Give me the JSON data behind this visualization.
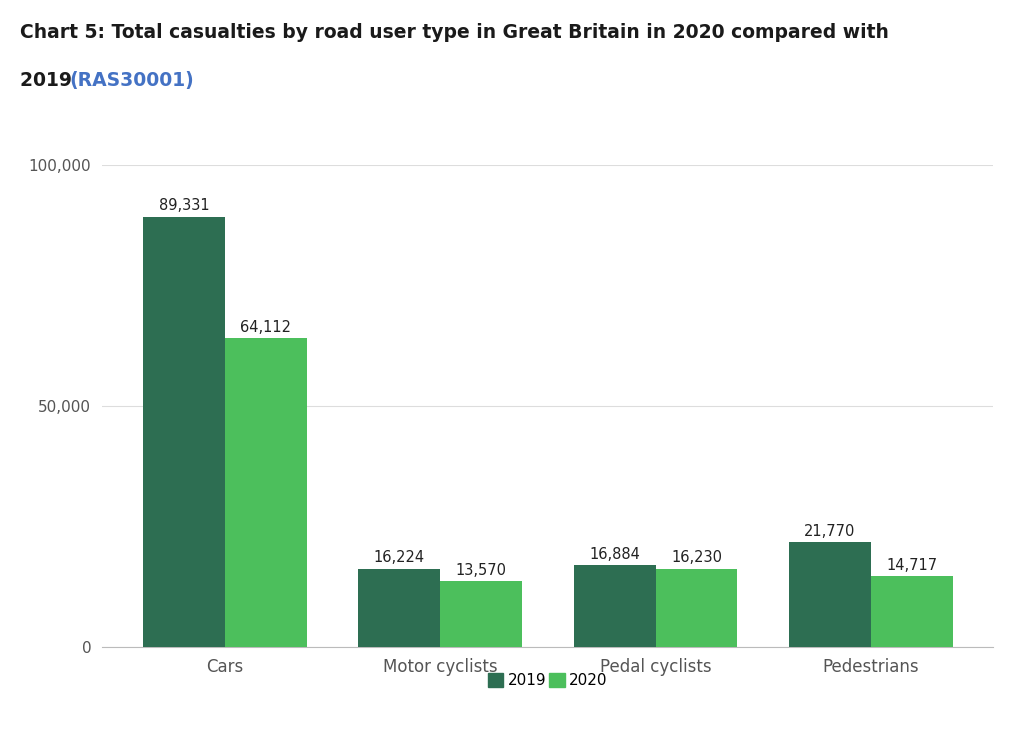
{
  "title_line1": "Chart 5: Total casualties by road user type in Great Britain in 2020 compared with",
  "title_line2_plain": "2019 ",
  "title_line2_link": "(RAS30001)",
  "categories": [
    "Cars",
    "Motor cyclists",
    "Pedal cyclists",
    "Pedestrians"
  ],
  "values_2019": [
    89331,
    16224,
    16884,
    21770
  ],
  "values_2020": [
    64112,
    13570,
    16230,
    14717
  ],
  "labels_2019": [
    "89,331",
    "16,224",
    "16,884",
    "21,770"
  ],
  "labels_2020": [
    "64,112",
    "13,570",
    "16,230",
    "14,717"
  ],
  "color_2019": "#2d6e52",
  "color_2020": "#4cbf5c",
  "ylim": [
    0,
    100000
  ],
  "yticks": [
    0,
    50000,
    100000
  ],
  "ytick_labels": [
    "0",
    "50,000",
    "100,000"
  ],
  "bar_width": 0.38,
  "background_color": "#ffffff",
  "legend_label_2019": "2019",
  "legend_label_2020": "2020",
  "title_color": "#1a1a1a",
  "link_color": "#4472c4",
  "tick_color": "#555555",
  "label_color": "#222222",
  "grid_color": "#dddddd"
}
